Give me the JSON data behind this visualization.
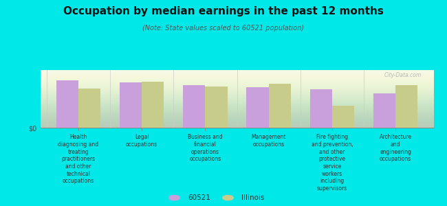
{
  "title": "Occupation by median earnings in the past 12 months",
  "subtitle": "(Note: State values scaled to 60521 population)",
  "categories": [
    "Health\ndiagnosing and\ntreating\npractitioners\nand other\ntechnical\noccupations",
    "Legal\noccupations",
    "Business and\nfinancial\noperations\noccupations",
    "Management\noccupations",
    "Fire fighting\nand prevention,\nand other\nprotective\nservice\nworkers\nincluding\nsupervisors",
    "Architecture\nand\nengineering\noccupations"
  ],
  "values_60521": [
    0.82,
    0.78,
    0.74,
    0.7,
    0.67,
    0.6
  ],
  "values_illinois": [
    0.68,
    0.8,
    0.72,
    0.76,
    0.38,
    0.74
  ],
  "color_60521": "#c9a0dc",
  "color_illinois": "#c8cc8a",
  "background_color": "#00e8e8",
  "plot_bg_top": "#f5f8e8",
  "plot_bg_bottom": "#d8e8c0",
  "ylabel": "$0",
  "legend_label_60521": "60521",
  "legend_label_illinois": "Illinois",
  "bar_width": 0.35,
  "ylim": [
    0,
    1.0
  ],
  "watermark": "City-Data.com"
}
